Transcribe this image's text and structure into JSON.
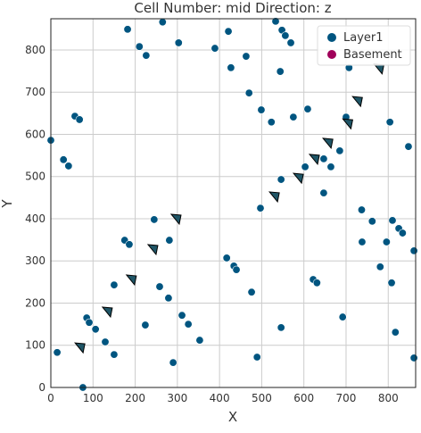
{
  "chart_data": {
    "type": "scatter",
    "title": "Cell Number: mid Direction: z",
    "xlabel": "X",
    "ylabel": "Y",
    "xlim": [
      0,
      865
    ],
    "ylim": [
      0,
      874
    ],
    "xticks": [
      0,
      100,
      200,
      300,
      400,
      500,
      600,
      700,
      800
    ],
    "yticks": [
      0,
      100,
      200,
      300,
      400,
      500,
      600,
      700,
      800
    ],
    "grid": true,
    "legend": "upper-right",
    "series": [
      {
        "name": "Layer1",
        "color": "#005580",
        "x": [
          0,
          30,
          42,
          57,
          68,
          182,
          210,
          226,
          265,
          303,
          389,
          421,
          427,
          463,
          470,
          499,
          533,
          548,
          556,
          569,
          544,
          523,
          575,
          609,
          603,
          647,
          664,
          685,
          700,
          707,
          647,
          546,
          497,
          737,
          762,
          810,
          825,
          834,
          848,
          804,
          861,
          738,
          796,
          781,
          808,
          817,
          861,
          692,
          245,
          175,
          186,
          281,
          150,
          258,
          279,
          417,
          434,
          440,
          476,
          622,
          631,
          311,
          326,
          224,
          353,
          546,
          489,
          290,
          85,
          91,
          106,
          129,
          150,
          15,
          76
        ],
        "values": [
          586,
          540,
          525,
          643,
          635,
          849,
          808,
          787,
          866,
          817,
          804,
          844,
          758,
          785,
          698,
          658,
          868,
          847,
          834,
          817,
          749,
          629,
          641,
          660,
          523,
          542,
          523,
          561,
          641,
          758,
          461,
          493,
          425,
          421,
          394,
          396,
          377,
          366,
          571,
          629,
          324,
          345,
          345,
          286,
          248,
          131,
          70,
          167,
          398,
          349,
          339,
          349,
          243,
          239,
          212,
          307,
          288,
          279,
          226,
          256,
          248,
          171,
          150,
          148,
          112,
          142,
          72,
          59,
          165,
          154,
          138,
          108,
          78,
          83,
          0
        ]
      },
      {
        "name": "Basement",
        "color": "#a0005a",
        "x": [],
        "values": []
      }
    ],
    "direction_markers": {
      "color": "#1f5566",
      "x": [
        68,
        133,
        190,
        241,
        296,
        529,
        586,
        624,
        656,
        703,
        726,
        777
      ],
      "y": [
        95,
        180,
        256,
        328,
        400,
        453,
        497,
        542,
        580,
        626,
        679,
        756
      ]
    }
  }
}
